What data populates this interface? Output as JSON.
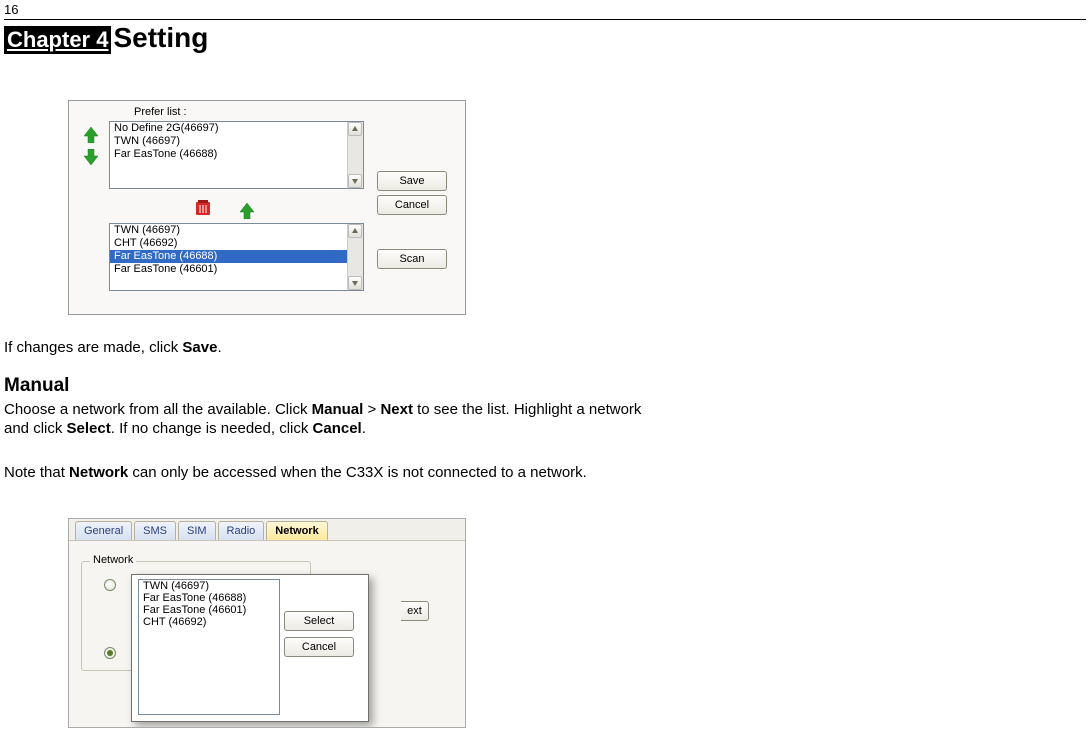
{
  "page_number": "16",
  "chapter_label": "Chapter 4",
  "chapter_title": "Setting",
  "dialog1": {
    "prefer_label": "Prefer list :",
    "list1": [
      "No Define 2G(46697)",
      "TWN (46697)",
      "Far EasTone (46688)"
    ],
    "list2": [
      {
        "text": "TWN (46697)",
        "selected": false
      },
      {
        "text": "CHT (46692)",
        "selected": false
      },
      {
        "text": "Far EasTone (46688)",
        "selected": true
      },
      {
        "text": "Far EasTone (46601)",
        "selected": false
      }
    ],
    "save_label": "Save",
    "cancel_label": "Cancel",
    "scan_label": "Scan"
  },
  "text": {
    "t1_a": "If changes are made, click ",
    "t1_b": "Save",
    "t1_c": ".",
    "manual_heading": "Manual",
    "t2_a": "Choose a network from all the available. Click ",
    "t2_b": "Manual",
    "t2_c": " > ",
    "t2_d": "Next",
    "t2_e": " to see the list. Highlight a network and click ",
    "t2_f": "Select",
    "t2_g": ". If no change is needed, click ",
    "t2_h": "Cancel",
    "t2_i": ".",
    "t3_a": "Note that ",
    "t3_b": "Network",
    "t3_c": " can only be accessed when the C33X is not connected to a network."
  },
  "dialog2": {
    "tabs": [
      "General",
      "SMS",
      "SIM",
      "Radio",
      "Network"
    ],
    "active_tab": 4,
    "fieldset_label": "Network",
    "next_fragment": "ext",
    "popup_list": [
      "TWN (46697)",
      "Far EasTone (46688)",
      "Far EasTone (46601)",
      "CHT (46692)"
    ],
    "select_label": "Select",
    "cancel_label": "Cancel"
  },
  "colors": {
    "green_arrow": "#2aa02a",
    "green_arrow_dark": "#1c7a1c",
    "selection_blue": "#316ac5"
  }
}
